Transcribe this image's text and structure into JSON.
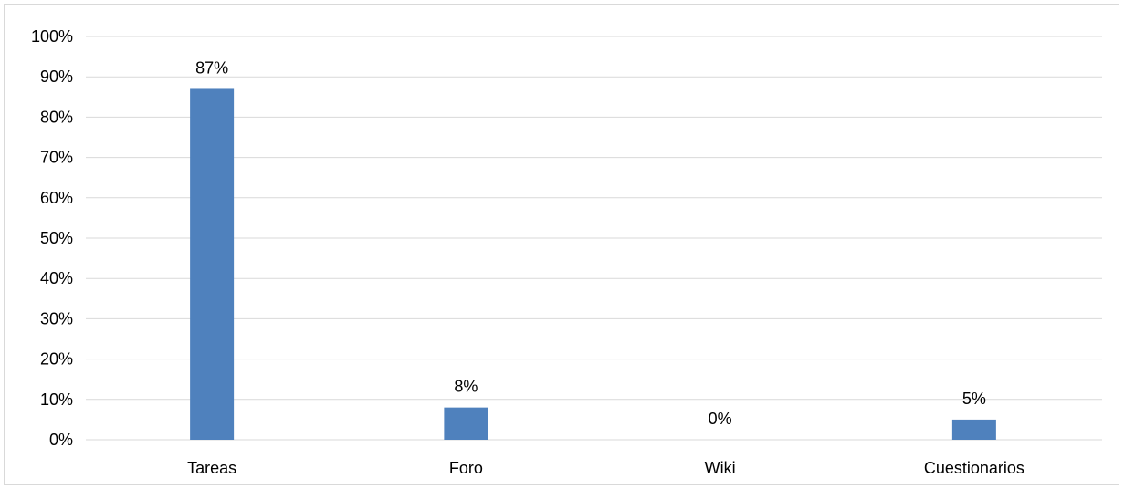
{
  "chart_data": {
    "type": "bar",
    "categories": [
      "Tareas",
      "Foro",
      "Wiki",
      "Cuestionarios"
    ],
    "values": [
      87,
      8,
      0,
      5
    ],
    "data_labels": [
      "87%",
      "8%",
      "0%",
      "5%"
    ],
    "title": "",
    "xlabel": "",
    "ylabel": "",
    "ylim": [
      0,
      100
    ],
    "y_ticks": [
      0,
      10,
      20,
      30,
      40,
      50,
      60,
      70,
      80,
      90,
      100
    ],
    "y_tick_labels": [
      "0%",
      "10%",
      "20%",
      "30%",
      "40%",
      "50%",
      "60%",
      "70%",
      "80%",
      "90%",
      "100%"
    ],
    "grid": true,
    "legend": "none",
    "bar_color": "#4f81bd",
    "grid_color": "#d9d9d9"
  }
}
